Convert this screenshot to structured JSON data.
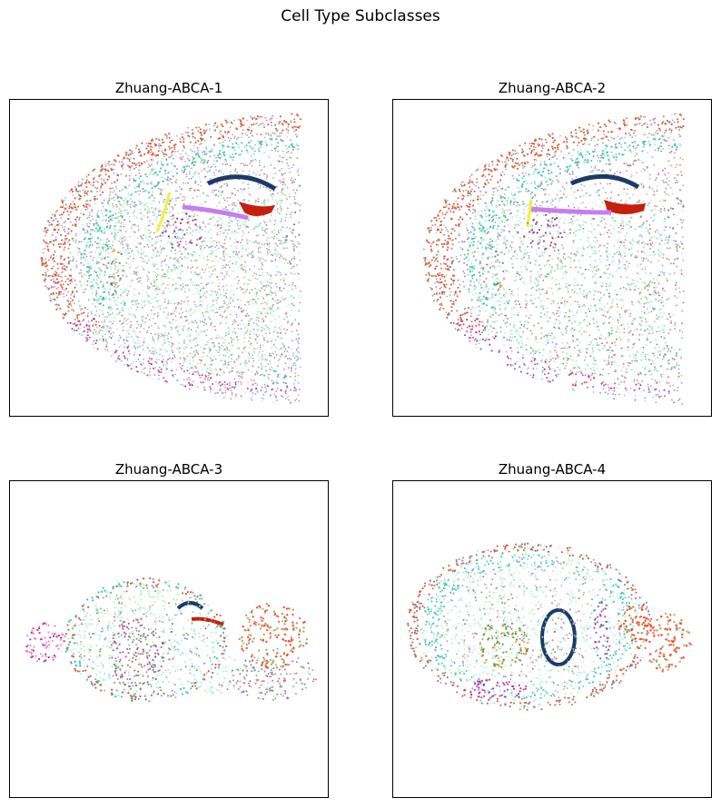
{
  "figure_title": "Cell Type Subclasses",
  "chart_data": [
    {
      "type": "scatter",
      "title": "Zhuang-ABCA-1",
      "view": "coronal",
      "xlabel": "",
      "ylabel": "",
      "ticks": false,
      "grid": false,
      "legend": "none"
    },
    {
      "type": "scatter",
      "title": "Zhuang-ABCA-2",
      "view": "coronal",
      "xlabel": "",
      "ylabel": "",
      "ticks": false,
      "grid": false,
      "legend": "none"
    },
    {
      "type": "scatter",
      "title": "Zhuang-ABCA-3",
      "view": "sagittal",
      "xlabel": "",
      "ylabel": "",
      "ticks": false,
      "grid": false,
      "legend": "none"
    },
    {
      "type": "scatter",
      "title": "Zhuang-ABCA-4",
      "view": "sagittal",
      "xlabel": "",
      "ylabel": "",
      "ticks": false,
      "grid": false,
      "legend": "none"
    }
  ],
  "palette": {
    "background_cells": [
      "#9ef0c8",
      "#c24fa0",
      "#4fc7b5",
      "#7a8a5a",
      "#d45a9e",
      "#6ab0d8",
      "#a66bd0",
      "#8bbd6a",
      "#f08aa8",
      "#5aa0a0",
      "#b08c4a",
      "#e06a7a"
    ],
    "cortex_outer": "#e0542c",
    "cortex_band": "#3ec6b0",
    "fiber": "#1b3a6b",
    "red_region": "#c81e0e",
    "violet_region": "#c77cf0",
    "green_region": "#3a9a1a",
    "yellow_region": "#f0f03a",
    "purple_region": "#8a1a6a",
    "magenta_region": "#c01aa0",
    "blue_region": "#3a6ac8",
    "pink_region": "#f080c0",
    "cerebellum_red": "#ff4020",
    "cerebellum_green": "#9aa860",
    "sky_region": "#3ab0e0",
    "orange_region": "#e88a30"
  }
}
